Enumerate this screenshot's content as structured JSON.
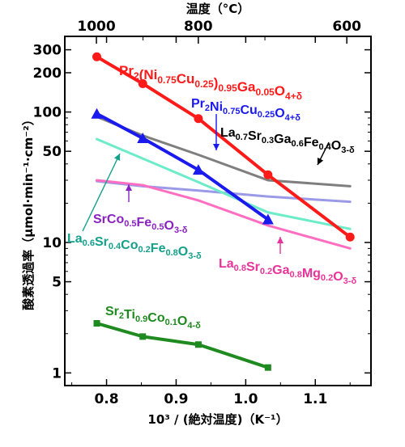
{
  "chart_data": {
    "type": "line",
    "xlabel": "10³ / (絶対温度)（K⁻¹）",
    "ylabel": "酸素透過率（μmol·min⁻¹·cm⁻²）",
    "top_axis_title": "温度（°C）",
    "y_scale": "log",
    "xlim": [
      0.74,
      1.18
    ],
    "ylim": [
      0.8,
      380
    ],
    "x_ticks": [
      0.8,
      0.9,
      1.0,
      1.1
    ],
    "x_tick_labels": [
      "0.8",
      "0.9",
      "1.0",
      "1.1"
    ],
    "y_ticks": [
      1,
      5,
      10,
      50,
      100,
      200,
      300
    ],
    "y_tick_labels": [
      "1",
      "5",
      "10",
      "50",
      "100",
      "200",
      "300"
    ],
    "y_minor_ticks": [
      2,
      3,
      4,
      6,
      7,
      8,
      9,
      20,
      30,
      40,
      60,
      70,
      80,
      90
    ],
    "top_ticks": [
      {
        "label": "1000",
        "celsius": 1000
      },
      {
        "label": "800",
        "celsius": 800
      },
      {
        "label": "600",
        "celsius": 600
      }
    ],
    "top_minor_celsius": [
      900,
      700
    ],
    "grid": false,
    "series": [
      {
        "label_parts": [
          [
            "Pr",
            "n"
          ],
          [
            "2",
            "sub"
          ],
          [
            "(Ni",
            "n"
          ],
          [
            "0.75",
            "sub"
          ],
          [
            "Cu",
            "n"
          ],
          [
            "0.25",
            "sub"
          ],
          [
            ")",
            "n"
          ],
          [
            "0.95",
            "sub"
          ],
          [
            "Ga",
            "n"
          ],
          [
            "0.05",
            "sub"
          ],
          [
            "O",
            "n"
          ],
          [
            "4+δ",
            "sub"
          ]
        ],
        "color": "#ff1a1a",
        "marker": "circle",
        "x": [
          0.786,
          0.852,
          0.932,
          1.032,
          1.15
        ],
        "y": [
          265,
          165,
          89,
          33,
          11
        ]
      },
      {
        "label_parts": [
          [
            "Pr",
            "n"
          ],
          [
            "2",
            "sub"
          ],
          [
            "Ni",
            "n"
          ],
          [
            "0.75",
            "sub"
          ],
          [
            "Cu",
            "n"
          ],
          [
            "0.25",
            "sub"
          ],
          [
            "O",
            "n"
          ],
          [
            "4+δ",
            "sub"
          ]
        ],
        "color": "#1a1aee",
        "marker": "triangle",
        "x": [
          0.786,
          0.852,
          0.932,
          1.032
        ],
        "y": [
          97,
          63,
          36,
          15
        ]
      },
      {
        "label_parts": [
          [
            "La",
            "n"
          ],
          [
            "0.7",
            "sub"
          ],
          [
            "Sr",
            "n"
          ],
          [
            "0.3",
            "sub"
          ],
          [
            "Ga",
            "n"
          ],
          [
            "0.6",
            "sub"
          ],
          [
            "Fe",
            "n"
          ],
          [
            "0.4",
            "sub"
          ],
          [
            "O",
            "n"
          ],
          [
            "3-δ",
            "sub"
          ]
        ],
        "color": "#7f7f7f",
        "marker": "none",
        "x": [
          0.786,
          0.852,
          0.932,
          1.032,
          1.15
        ],
        "y": [
          92,
          66,
          47,
          30,
          27
        ]
      },
      {
        "label_parts": [
          [
            "SrCo",
            "n"
          ],
          [
            "0.5",
            "sub"
          ],
          [
            "Fe",
            "n"
          ],
          [
            "0.5",
            "sub"
          ],
          [
            "O",
            "n"
          ],
          [
            "3-δ",
            "sub"
          ]
        ],
        "color": "#9a9ae8",
        "marker": "none",
        "x": [
          0.786,
          0.852,
          0.932,
          1.032,
          1.15
        ],
        "y": [
          29.5,
          27,
          25,
          22.5,
          20.5
        ]
      },
      {
        "label_parts": [
          [
            "La",
            "n"
          ],
          [
            "0.6",
            "sub"
          ],
          [
            "Sr",
            "n"
          ],
          [
            "0.4",
            "sub"
          ],
          [
            "Co",
            "n"
          ],
          [
            "0.2",
            "sub"
          ],
          [
            "Fe",
            "n"
          ],
          [
            "0.8",
            "sub"
          ],
          [
            "O",
            "n"
          ],
          [
            "3-δ",
            "sub"
          ]
        ],
        "color": "#6cecc8",
        "marker": "none",
        "x": [
          0.786,
          0.852,
          0.932,
          1.032,
          1.15
        ],
        "y": [
          62,
          44,
          29,
          17,
          12.7
        ]
      },
      {
        "label_parts": [
          [
            "La",
            "n"
          ],
          [
            "0.8",
            "sub"
          ],
          [
            "Sr",
            "n"
          ],
          [
            "0.2",
            "sub"
          ],
          [
            "Ga",
            "n"
          ],
          [
            "0.8",
            "sub"
          ],
          [
            "Mg",
            "n"
          ],
          [
            "0.2",
            "sub"
          ],
          [
            "O",
            "n"
          ],
          [
            "3-δ",
            "sub"
          ]
        ],
        "color": "#ff6ec0",
        "marker": "none",
        "x": [
          0.786,
          0.852,
          0.932,
          1.032,
          1.15
        ],
        "y": [
          30,
          27.5,
          21,
          13.5,
          9
        ]
      },
      {
        "label_parts": [
          [
            "Sr",
            "n"
          ],
          [
            "2",
            "sub"
          ],
          [
            "Ti",
            "n"
          ],
          [
            "0.9",
            "sub"
          ],
          [
            "Co",
            "n"
          ],
          [
            "0.1",
            "sub"
          ],
          [
            "O",
            "n"
          ],
          [
            "4-δ",
            "sub"
          ]
        ],
        "color": "#1f8a1f",
        "marker": "square",
        "x": [
          0.786,
          0.852,
          0.932,
          1.032
        ],
        "y": [
          2.4,
          1.9,
          1.65,
          1.1
        ]
      }
    ]
  }
}
